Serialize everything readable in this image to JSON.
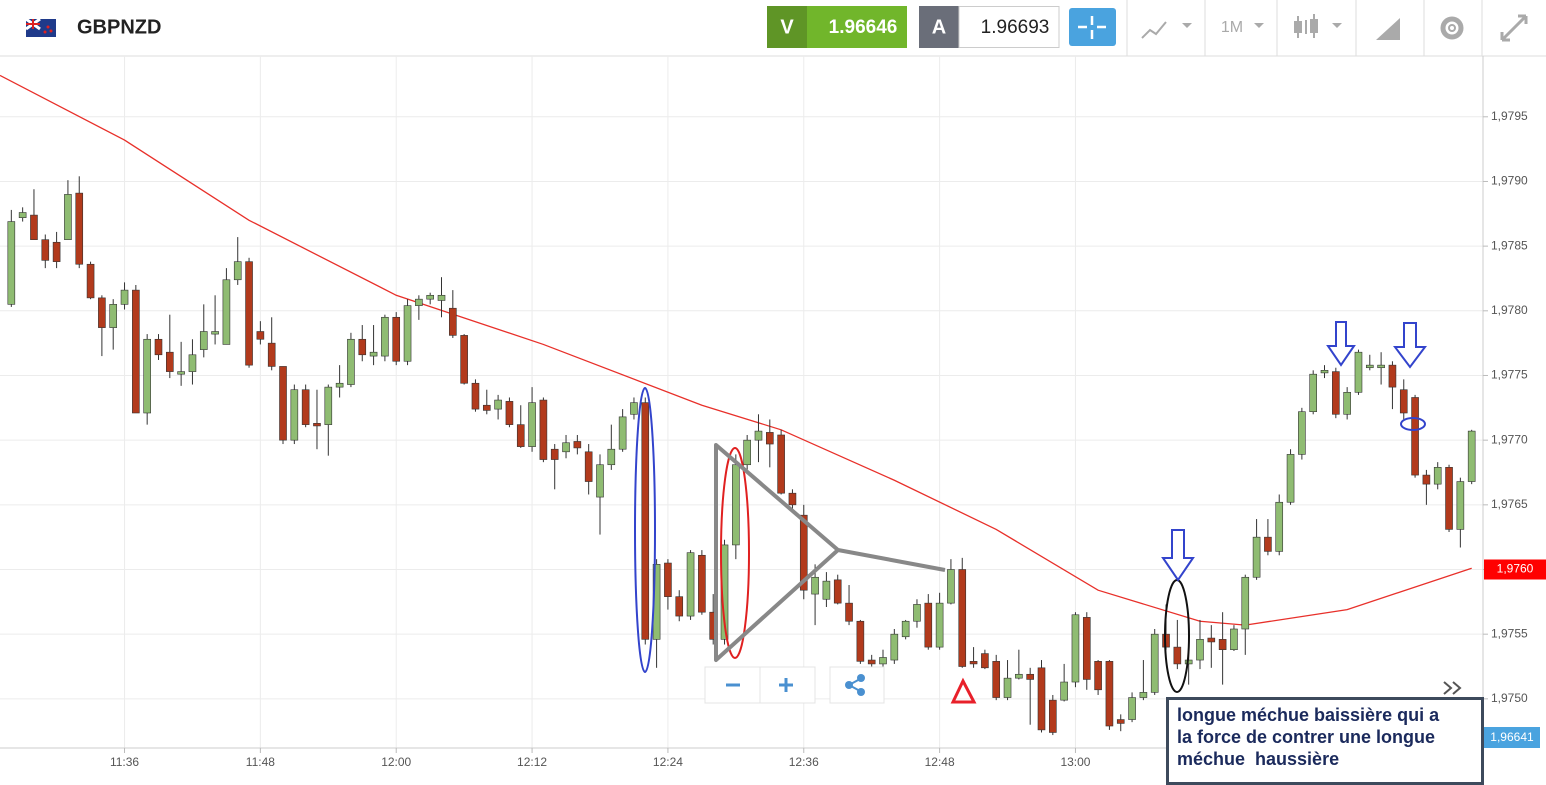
{
  "toolbar": {
    "symbol": "GBPNZD",
    "sell_label": "V",
    "sell_price": "1.96646",
    "buy_label": "A",
    "buy_price": "1.96693",
    "timeframe": "1M"
  },
  "chart_data": {
    "type": "candlestick",
    "x": [
      "11:26",
      "11:27",
      "11:28",
      "11:29",
      "11:30",
      "11:31",
      "11:32",
      "11:33",
      "11:34",
      "11:35",
      "11:36",
      "11:37",
      "11:38",
      "11:39",
      "11:40",
      "11:41",
      "11:42",
      "11:43",
      "11:44",
      "11:45",
      "11:46",
      "11:47",
      "11:48",
      "11:49",
      "11:50",
      "11:51",
      "11:52",
      "11:53",
      "11:54",
      "11:55",
      "11:56",
      "11:57",
      "11:58",
      "11:59",
      "12:00",
      "12:01",
      "12:02",
      "12:03",
      "12:04",
      "12:05",
      "12:06",
      "12:07",
      "12:08",
      "12:09",
      "12:10",
      "12:11",
      "12:12",
      "12:13",
      "12:14",
      "12:15",
      "12:16",
      "12:17",
      "12:18",
      "12:19",
      "12:20",
      "12:21",
      "12:22",
      "12:23",
      "12:24",
      "12:25",
      "12:26",
      "12:27",
      "12:28",
      "12:29",
      "12:30",
      "12:31",
      "12:32",
      "12:33",
      "12:34",
      "12:35",
      "12:36",
      "12:37",
      "12:38",
      "12:39",
      "12:40",
      "12:41",
      "12:42",
      "12:43",
      "12:44",
      "12:45",
      "12:46",
      "12:47",
      "12:48",
      "12:49",
      "12:50",
      "12:51",
      "12:52",
      "12:53",
      "12:54",
      "12:55",
      "12:56",
      "12:57",
      "12:58",
      "12:59",
      "13:00",
      "13:01",
      "13:02",
      "13:03",
      "13:04",
      "13:05",
      "13:06",
      "13:07",
      "13:08",
      "13:09",
      "13:10",
      "13:11",
      "13:12",
      "13:13",
      "13:14",
      "13:15",
      "13:16",
      "13:17",
      "13:18",
      "13:19",
      "13:20",
      "13:21",
      "13:22",
      "13:23",
      "13:24",
      "13:25",
      "13:26",
      "13:27",
      "13:28",
      "13:29",
      "13:30",
      "13:31",
      "13:32",
      "13:33",
      "13:34",
      "13:35"
    ],
    "open": [
      1.97805,
      1.97872,
      1.97874,
      1.97855,
      1.97853,
      1.97855,
      1.97891,
      1.97836,
      1.9781,
      1.97787,
      1.97805,
      1.97816,
      1.97721,
      1.97778,
      1.97768,
      1.97751,
      1.97753,
      1.9777,
      1.97782,
      1.97774,
      1.97824,
      1.97838,
      1.97784,
      1.97775,
      1.97757,
      1.977,
      1.97739,
      1.97713,
      1.97712,
      1.97741,
      1.97743,
      1.97778,
      1.97765,
      1.97765,
      1.97795,
      1.97761,
      1.97804,
      1.97809,
      1.97808,
      1.97802,
      1.97781,
      1.97744,
      1.97727,
      1.97724,
      1.9773,
      1.97712,
      1.97695,
      1.97731,
      1.97693,
      1.97691,
      1.97699,
      1.97691,
      1.97656,
      1.97681,
      1.97693,
      1.9772,
      1.97729,
      1.97546,
      1.97605,
      1.97579,
      1.97564,
      1.97611,
      1.97567,
      1.97546,
      1.97619,
      1.97681,
      1.977,
      1.97706,
      1.97704,
      1.97659,
      1.97642,
      1.97581,
      1.97577,
      1.97592,
      1.97574,
      1.9756,
      1.9753,
      1.97527,
      1.9753,
      1.97548,
      1.9756,
      1.97574,
      1.9754,
      1.97574,
      1.976,
      1.97529,
      1.97535,
      1.97529,
      1.97501,
      1.97516,
      1.97519,
      1.97524,
      1.97499,
      1.97499,
      1.97513,
      1.97563,
      1.97529,
      1.97529,
      1.97484,
      1.97484,
      1.97501,
      1.97505,
      1.9755,
      1.9754,
      1.97527,
      1.9753,
      1.97547,
      1.97546,
      1.97538,
      1.97554,
      1.97594,
      1.97625,
      1.97614,
      1.97652,
      1.97689,
      1.97722,
      1.97752,
      1.97753,
      1.9772,
      1.97737,
      1.97756,
      1.97756,
      1.97758,
      1.97739,
      1.97733,
      1.97673,
      1.97666,
      1.97679,
      1.97631,
      1.97668
    ],
    "high": [
      1.97878,
      1.9788,
      1.97894,
      1.97859,
      1.97861,
      1.97901,
      1.97904,
      1.97838,
      1.97812,
      1.97809,
      1.97822,
      1.9782,
      1.97782,
      1.97782,
      1.97797,
      1.97776,
      1.97778,
      1.97805,
      1.97812,
      1.97833,
      1.97857,
      1.97841,
      1.97792,
      1.97795,
      1.97757,
      1.97743,
      1.97743,
      1.97739,
      1.97743,
      1.97758,
      1.97783,
      1.97789,
      1.97789,
      1.97797,
      1.97799,
      1.97809,
      1.97812,
      1.97814,
      1.97826,
      1.97816,
      1.97782,
      1.97747,
      1.97739,
      1.97735,
      1.97733,
      1.97727,
      1.97741,
      1.97733,
      1.97697,
      1.97704,
      1.97704,
      1.97697,
      1.97689,
      1.97712,
      1.97724,
      1.97733,
      1.97733,
      1.97608,
      1.97608,
      1.97584,
      1.97615,
      1.97615,
      1.97581,
      1.97623,
      1.97689,
      1.97704,
      1.9772,
      1.97716,
      1.97708,
      1.97662,
      1.9765,
      1.97604,
      1.97598,
      1.97596,
      1.97588,
      1.97561,
      1.97534,
      1.97538,
      1.97554,
      1.97561,
      1.97577,
      1.97581,
      1.97582,
      1.97608,
      1.97609,
      1.9754,
      1.97538,
      1.97534,
      1.9753,
      1.97538,
      1.97524,
      1.9753,
      1.97503,
      1.97527,
      1.97567,
      1.97567,
      1.9753,
      1.9753,
      1.97488,
      1.97505,
      1.9753,
      1.97554,
      1.97573,
      1.97561,
      1.97546,
      1.97561,
      1.97557,
      1.97567,
      1.97557,
      1.97596,
      1.97639,
      1.97639,
      1.97658,
      1.97693,
      1.97725,
      1.97754,
      1.97758,
      1.97756,
      1.97741,
      1.9777,
      1.97766,
      1.97768,
      1.97761,
      1.97747,
      1.97735,
      1.97677,
      1.97683,
      1.97681,
      1.97671,
      1.97708
    ],
    "low": [
      1.97803,
      1.97869,
      1.97855,
      1.97833,
      1.97833,
      1.97855,
      1.97833,
      1.97809,
      1.97765,
      1.9777,
      1.97801,
      1.97721,
      1.97712,
      1.97762,
      1.97748,
      1.97742,
      1.97743,
      1.97764,
      1.97774,
      1.97774,
      1.9782,
      1.97756,
      1.97774,
      1.97754,
      1.97697,
      1.97697,
      1.9771,
      1.97693,
      1.97688,
      1.97733,
      1.97741,
      1.97761,
      1.97758,
      1.97761,
      1.97758,
      1.97758,
      1.97793,
      1.97805,
      1.97795,
      1.97779,
      1.97743,
      1.97722,
      1.9772,
      1.97716,
      1.9771,
      1.97694,
      1.97691,
      1.97683,
      1.97662,
      1.97686,
      1.97689,
      1.97658,
      1.97627,
      1.97677,
      1.97691,
      1.97716,
      1.97542,
      1.97524,
      1.97569,
      1.9756,
      1.97561,
      1.97565,
      1.97542,
      1.97542,
      1.97608,
      1.97677,
      1.97683,
      1.97679,
      1.97658,
      1.97645,
      1.97577,
      1.97557,
      1.97571,
      1.97573,
      1.97557,
      1.97527,
      1.97521,
      1.97523,
      1.97527,
      1.97546,
      1.97555,
      1.97538,
      1.97538,
      1.97573,
      1.97524,
      1.97524,
      1.97523,
      1.97499,
      1.97499,
      1.97515,
      1.9748,
      1.97474,
      1.97472,
      1.97498,
      1.97509,
      1.97507,
      1.97503,
      1.97476,
      1.97475,
      1.97482,
      1.97499,
      1.97503,
      1.97538,
      1.97523,
      1.97511,
      1.97523,
      1.97524,
      1.97511,
      1.97537,
      1.97534,
      1.97592,
      1.97611,
      1.97611,
      1.9765,
      1.97685,
      1.9772,
      1.97748,
      1.97717,
      1.97716,
      1.97735,
      1.97754,
      1.97743,
      1.97724,
      1.97716,
      1.97671,
      1.9765,
      1.97662,
      1.97629,
      1.97617,
      1.97666
    ],
    "close": [
      1.97869,
      1.97876,
      1.97855,
      1.97839,
      1.97838,
      1.9789,
      1.97836,
      1.9781,
      1.97787,
      1.97805,
      1.97816,
      1.97721,
      1.97778,
      1.97766,
      1.97753,
      1.97753,
      1.97766,
      1.97784,
      1.97784,
      1.97824,
      1.97838,
      1.97758,
      1.97778,
      1.97757,
      1.977,
      1.97739,
      1.97712,
      1.97711,
      1.97741,
      1.97744,
      1.97778,
      1.97766,
      1.97768,
      1.97795,
      1.97761,
      1.97804,
      1.97809,
      1.97812,
      1.97812,
      1.97781,
      1.97744,
      1.97724,
      1.97723,
      1.97731,
      1.97712,
      1.97695,
      1.97729,
      1.97685,
      1.97685,
      1.97698,
      1.97694,
      1.97668,
      1.97681,
      1.97693,
      1.97718,
      1.97729,
      1.97546,
      1.97604,
      1.97579,
      1.97564,
      1.97613,
      1.97567,
      1.97546,
      1.97619,
      1.97681,
      1.977,
      1.97707,
      1.97697,
      1.97659,
      1.9765,
      1.97584,
      1.97594,
      1.97591,
      1.97574,
      1.9756,
      1.97529,
      1.97527,
      1.97532,
      1.9755,
      1.9756,
      1.97573,
      1.9754,
      1.97574,
      1.976,
      1.97525,
      1.97527,
      1.97524,
      1.97501,
      1.97516,
      1.97519,
      1.97515,
      1.97476,
      1.97474,
      1.97513,
      1.97565,
      1.97515,
      1.97507,
      1.97479,
      1.97481,
      1.97501,
      1.97505,
      1.9755,
      1.9754,
      1.97527,
      1.9753,
      1.97546,
      1.97544,
      1.97538,
      1.97554,
      1.97594,
      1.97625,
      1.97614,
      1.97652,
      1.97689,
      1.97722,
      1.97751,
      1.97754,
      1.9772,
      1.97737,
      1.97768,
      1.97758,
      1.97758,
      1.97741,
      1.97721,
      1.97673,
      1.97666,
      1.97679,
      1.97631,
      1.97668,
      1.97707
    ],
    "up_color": "#8fbc72",
    "down_color": "#b23a1c",
    "moving_average": {
      "color": "#e8302a",
      "x": [
        "11:25",
        "11:36",
        "11:47",
        "12:00",
        "12:13",
        "12:27",
        "12:34",
        "12:44",
        "12:53",
        "13:02",
        "13:11",
        "13:15",
        "13:24",
        "13:35"
      ],
      "values": [
        1.97982,
        1.97932,
        1.9787,
        1.97812,
        1.97774,
        1.97727,
        1.97708,
        1.97669,
        1.97631,
        1.97584,
        1.9756,
        1.97557,
        1.97569,
        1.97601
      ]
    },
    "xlim": [
      "11:25",
      "13:36"
    ],
    "xticks": [
      "11:36",
      "11:48",
      "12:00",
      "12:12",
      "12:24",
      "12:36",
      "12:48",
      "13:00"
    ],
    "ylim": [
      1.97462,
      1.97997
    ],
    "yticks": [
      {
        "value": 1.975,
        "label": "1,9750"
      },
      {
        "value": 1.9755,
        "label": "1,9755"
      },
      {
        "value": 1.976,
        "label": "1,9760"
      },
      {
        "value": 1.9765,
        "label": "1,9765"
      },
      {
        "value": 1.977,
        "label": "1,9770"
      },
      {
        "value": 1.9775,
        "label": "1,9775"
      },
      {
        "value": 1.978,
        "label": "1,9780"
      },
      {
        "value": 1.9785,
        "label": "1,9785"
      },
      {
        "value": 1.979,
        "label": "1,9790"
      },
      {
        "value": 1.9795,
        "label": "1,9795"
      }
    ],
    "grid": true,
    "price_marker": {
      "value": 1.976,
      "label": "1,9760",
      "color": "#ff0000"
    },
    "bid_label": "1,96641",
    "annotation": [
      "longue méchue baissière qui a",
      "la force de contrer une longue",
      "méchue  haussière"
    ]
  }
}
